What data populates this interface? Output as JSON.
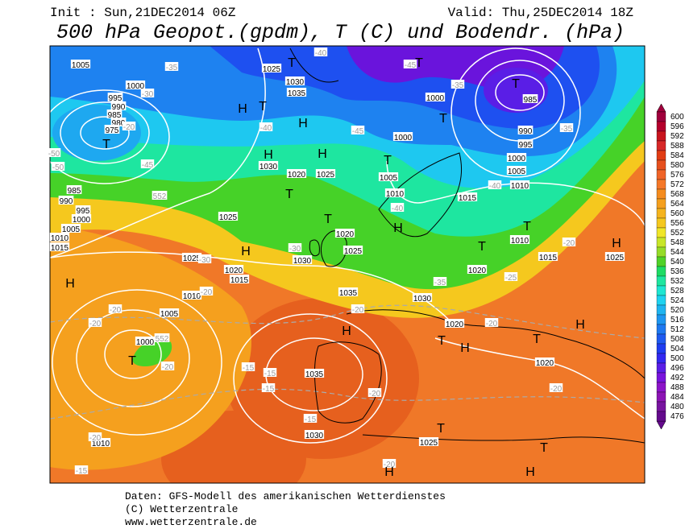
{
  "header": {
    "init": "Init : Sun,21DEC2014 06Z",
    "valid": "Valid: Thu,25DEC2014 18Z",
    "title": "500 hPa Geopot.(gpdm), T (C) und Bodendr. (hPa)"
  },
  "map": {
    "pressure_labels": [
      1005,
      1025,
      1030,
      1035,
      1000,
      995,
      990,
      985,
      980,
      975,
      1000,
      985,
      990,
      995,
      1000,
      1005,
      1010,
      1000,
      1030,
      1020,
      1025,
      1005,
      1010,
      1015,
      985,
      990,
      995,
      1000,
      1005,
      1010,
      1015,
      1025,
      1020,
      1025,
      1030,
      1025,
      1020,
      1015,
      1010,
      1035,
      1030,
      1020,
      1010,
      1015,
      1025,
      1005,
      1000,
      1035,
      1030,
      1025,
      1020,
      1020,
      1010
    ],
    "temperature_labels": [
      -35,
      -40,
      -45,
      -35,
      -30,
      -20,
      -35,
      -40,
      -45,
      -45,
      -50,
      -50,
      -40,
      -40,
      -30,
      -30,
      -35,
      -25,
      -20,
      -20,
      -20,
      -20,
      -20,
      -20,
      -20,
      -15,
      -15,
      -15,
      -20,
      -15,
      -20,
      -20,
      -15,
      -20
    ],
    "contour_labels": [
      552,
      552
    ],
    "pressure_centers": [
      "T",
      "T",
      "H",
      "T",
      "H",
      "T",
      "T",
      "T",
      "H",
      "H",
      "T",
      "T",
      "T",
      "H",
      "T",
      "T",
      "H",
      "H",
      "H",
      "H",
      "T",
      "H",
      "T",
      "H",
      "T",
      "T",
      "T",
      "H",
      "H"
    ]
  },
  "colorbar": {
    "ticks": [
      600,
      596,
      592,
      588,
      584,
      580,
      576,
      572,
      568,
      564,
      560,
      556,
      552,
      548,
      544,
      540,
      536,
      532,
      528,
      524,
      520,
      516,
      512,
      508,
      504,
      500,
      496,
      492,
      488,
      484,
      480,
      476
    ],
    "colors": [
      "#a0003c",
      "#b4002c",
      "#c8141e",
      "#d72828",
      "#e13c14",
      "#e6501e",
      "#f06428",
      "#f57828",
      "#f58c1e",
      "#f5a01e",
      "#f5b41e",
      "#f5c81e",
      "#f0e628",
      "#c8e628",
      "#96dc28",
      "#50d228",
      "#1edc64",
      "#1ee6a0",
      "#1ee6d2",
      "#1ed2f0",
      "#1eb4f0",
      "#1e96f0",
      "#1e78f0",
      "#1e5af0",
      "#1e3cf0",
      "#3228f0",
      "#5a1ee6",
      "#7814dc",
      "#8c14c8",
      "#8c14b4",
      "#7814a0",
      "#640a8c"
    ]
  },
  "footer": {
    "lines": [
      "Daten: GFS-Modell des amerikanischen Wetterdienstes",
      "(C) Wetterzentrale",
      "www.wetterzentrale.de"
    ]
  }
}
